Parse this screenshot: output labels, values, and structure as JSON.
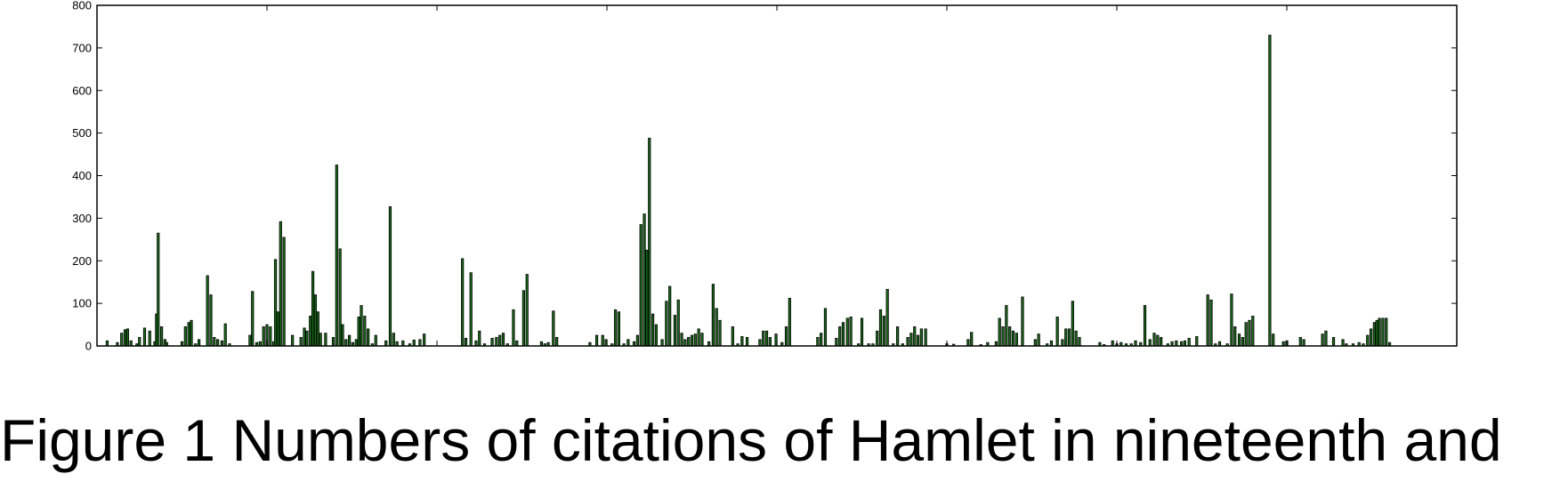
{
  "chart_data": {
    "type": "bar",
    "title": "",
    "xlabel": "",
    "ylabel": "",
    "xlim": [
      0,
      16000
    ],
    "ylim": [
      0,
      800
    ],
    "xticks": [
      0,
      2000,
      4000,
      6000,
      8000,
      10000,
      12000,
      14000,
      16000
    ],
    "yticks": [
      0,
      100,
      200,
      300,
      400,
      500,
      600,
      700,
      800
    ],
    "bar_width": 25,
    "bar_color": "#1a6b1a",
    "edge_color": "#000000",
    "grid": false,
    "points": [
      [
        120,
        12
      ],
      [
        240,
        8
      ],
      [
        290,
        30
      ],
      [
        330,
        38
      ],
      [
        360,
        40
      ],
      [
        400,
        12
      ],
      [
        470,
        5
      ],
      [
        500,
        20
      ],
      [
        560,
        42
      ],
      [
        620,
        35
      ],
      [
        680,
        10
      ],
      [
        700,
        75
      ],
      [
        720,
        265
      ],
      [
        760,
        45
      ],
      [
        800,
        15
      ],
      [
        820,
        8
      ],
      [
        1000,
        10
      ],
      [
        1040,
        45
      ],
      [
        1080,
        55
      ],
      [
        1110,
        60
      ],
      [
        1160,
        5
      ],
      [
        1200,
        15
      ],
      [
        1300,
        165
      ],
      [
        1340,
        120
      ],
      [
        1380,
        20
      ],
      [
        1420,
        15
      ],
      [
        1470,
        12
      ],
      [
        1510,
        52
      ],
      [
        1560,
        5
      ],
      [
        1800,
        25
      ],
      [
        1830,
        128
      ],
      [
        1880,
        8
      ],
      [
        1920,
        10
      ],
      [
        1960,
        45
      ],
      [
        2000,
        50
      ],
      [
        2040,
        45
      ],
      [
        2080,
        10
      ],
      [
        2100,
        203
      ],
      [
        2130,
        80
      ],
      [
        2160,
        292
      ],
      [
        2200,
        255
      ],
      [
        2300,
        25
      ],
      [
        2400,
        20
      ],
      [
        2440,
        42
      ],
      [
        2470,
        35
      ],
      [
        2510,
        70
      ],
      [
        2540,
        175
      ],
      [
        2570,
        120
      ],
      [
        2600,
        80
      ],
      [
        2630,
        30
      ],
      [
        2690,
        30
      ],
      [
        2780,
        20
      ],
      [
        2820,
        425
      ],
      [
        2860,
        228
      ],
      [
        2890,
        50
      ],
      [
        2930,
        15
      ],
      [
        2970,
        25
      ],
      [
        3010,
        8
      ],
      [
        3050,
        15
      ],
      [
        3080,
        68
      ],
      [
        3110,
        95
      ],
      [
        3150,
        70
      ],
      [
        3190,
        40
      ],
      [
        3240,
        5
      ],
      [
        3280,
        25
      ],
      [
        3400,
        12
      ],
      [
        3450,
        327
      ],
      [
        3490,
        30
      ],
      [
        3530,
        10
      ],
      [
        3600,
        12
      ],
      [
        3680,
        5
      ],
      [
        3730,
        14
      ],
      [
        3800,
        15
      ],
      [
        3850,
        28
      ],
      [
        4300,
        205
      ],
      [
        4340,
        18
      ],
      [
        4400,
        172
      ],
      [
        4460,
        12
      ],
      [
        4500,
        35
      ],
      [
        4560,
        5
      ],
      [
        4650,
        18
      ],
      [
        4700,
        20
      ],
      [
        4740,
        25
      ],
      [
        4780,
        30
      ],
      [
        4830,
        5
      ],
      [
        4900,
        85
      ],
      [
        4940,
        12
      ],
      [
        5020,
        130
      ],
      [
        5060,
        168
      ],
      [
        5230,
        10
      ],
      [
        5270,
        5
      ],
      [
        5310,
        8
      ],
      [
        5370,
        82
      ],
      [
        5410,
        20
      ],
      [
        5800,
        8
      ],
      [
        5880,
        25
      ],
      [
        5950,
        25
      ],
      [
        5990,
        15
      ],
      [
        6060,
        5
      ],
      [
        6100,
        85
      ],
      [
        6140,
        80
      ],
      [
        6200,
        5
      ],
      [
        6250,
        15
      ],
      [
        6320,
        10
      ],
      [
        6360,
        25
      ],
      [
        6400,
        285
      ],
      [
        6440,
        310
      ],
      [
        6470,
        225
      ],
      [
        6500,
        488
      ],
      [
        6540,
        75
      ],
      [
        6580,
        50
      ],
      [
        6650,
        15
      ],
      [
        6700,
        105
      ],
      [
        6740,
        140
      ],
      [
        6800,
        72
      ],
      [
        6840,
        108
      ],
      [
        6880,
        30
      ],
      [
        6920,
        15
      ],
      [
        6960,
        20
      ],
      [
        7000,
        25
      ],
      [
        7040,
        28
      ],
      [
        7080,
        40
      ],
      [
        7120,
        30
      ],
      [
        7200,
        10
      ],
      [
        7250,
        145
      ],
      [
        7290,
        88
      ],
      [
        7330,
        60
      ],
      [
        7480,
        45
      ],
      [
        7540,
        5
      ],
      [
        7590,
        22
      ],
      [
        7650,
        20
      ],
      [
        7800,
        15
      ],
      [
        7840,
        35
      ],
      [
        7880,
        35
      ],
      [
        7920,
        20
      ],
      [
        7990,
        28
      ],
      [
        8060,
        8
      ],
      [
        8110,
        45
      ],
      [
        8150,
        112
      ],
      [
        8480,
        20
      ],
      [
        8520,
        30
      ],
      [
        8570,
        88
      ],
      [
        8700,
        18
      ],
      [
        8740,
        45
      ],
      [
        8780,
        55
      ],
      [
        8830,
        65
      ],
      [
        8870,
        68
      ],
      [
        8960,
        5
      ],
      [
        9000,
        65
      ],
      [
        9080,
        5
      ],
      [
        9130,
        5
      ],
      [
        9180,
        35
      ],
      [
        9220,
        85
      ],
      [
        9260,
        70
      ],
      [
        9300,
        133
      ],
      [
        9370,
        5
      ],
      [
        9420,
        45
      ],
      [
        9480,
        5
      ],
      [
        9540,
        20
      ],
      [
        9580,
        30
      ],
      [
        9620,
        45
      ],
      [
        9660,
        25
      ],
      [
        9700,
        40
      ],
      [
        9750,
        40
      ],
      [
        10000,
        5
      ],
      [
        10080,
        4
      ],
      [
        10250,
        15
      ],
      [
        10290,
        32
      ],
      [
        10400,
        3
      ],
      [
        10480,
        8
      ],
      [
        10580,
        10
      ],
      [
        10620,
        65
      ],
      [
        10660,
        45
      ],
      [
        10700,
        95
      ],
      [
        10740,
        45
      ],
      [
        10780,
        35
      ],
      [
        10820,
        30
      ],
      [
        10890,
        115
      ],
      [
        11040,
        15
      ],
      [
        11080,
        28
      ],
      [
        11180,
        5
      ],
      [
        11230,
        12
      ],
      [
        11300,
        68
      ],
      [
        11360,
        15
      ],
      [
        11400,
        40
      ],
      [
        11440,
        40
      ],
      [
        11480,
        105
      ],
      [
        11520,
        35
      ],
      [
        11560,
        20
      ],
      [
        11800,
        8
      ],
      [
        11850,
        3
      ],
      [
        11950,
        12
      ],
      [
        12000,
        5
      ],
      [
        12050,
        8
      ],
      [
        12110,
        5
      ],
      [
        12170,
        5
      ],
      [
        12220,
        12
      ],
      [
        12280,
        8
      ],
      [
        12330,
        95
      ],
      [
        12390,
        15
      ],
      [
        12440,
        30
      ],
      [
        12480,
        25
      ],
      [
        12520,
        20
      ],
      [
        12600,
        5
      ],
      [
        12650,
        10
      ],
      [
        12700,
        12
      ],
      [
        12760,
        10
      ],
      [
        12800,
        12
      ],
      [
        12850,
        18
      ],
      [
        12940,
        22
      ],
      [
        13070,
        120
      ],
      [
        13110,
        108
      ],
      [
        13160,
        5
      ],
      [
        13210,
        10
      ],
      [
        13300,
        5
      ],
      [
        13350,
        122
      ],
      [
        13390,
        45
      ],
      [
        13440,
        28
      ],
      [
        13480,
        20
      ],
      [
        13520,
        55
      ],
      [
        13560,
        60
      ],
      [
        13600,
        70
      ],
      [
        13800,
        730
      ],
      [
        13840,
        28
      ],
      [
        13960,
        10
      ],
      [
        14000,
        12
      ],
      [
        14160,
        20
      ],
      [
        14200,
        15
      ],
      [
        14420,
        28
      ],
      [
        14460,
        35
      ],
      [
        14550,
        20
      ],
      [
        14660,
        15
      ],
      [
        14700,
        5
      ],
      [
        14780,
        5
      ],
      [
        14850,
        8
      ],
      [
        14900,
        5
      ],
      [
        14950,
        25
      ],
      [
        14990,
        40
      ],
      [
        15030,
        55
      ],
      [
        15060,
        60
      ],
      [
        15090,
        65
      ],
      [
        15130,
        65
      ],
      [
        15170,
        65
      ],
      [
        15210,
        8
      ]
    ]
  },
  "caption": {
    "text": "Figure 1 Numbers of citations of Hamlet  in nineteenth and"
  }
}
